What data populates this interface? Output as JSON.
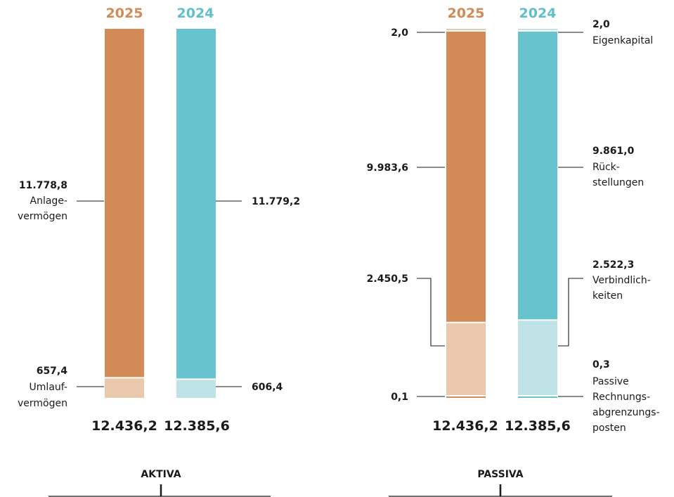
{
  "colors": {
    "y2025_dark": "#d28b57",
    "y2025_light": "#eac8ab",
    "y2024_dark": "#67c3cd",
    "y2024_light": "#bfe2e6",
    "y2025_text": "#d28b57",
    "y2024_text": "#5fc0cb"
  },
  "chart_data": [
    {
      "type": "bar",
      "stacked": true,
      "title": "AKTIVA",
      "categories": [
        "2025",
        "2024"
      ],
      "series": [
        {
          "name": "Umlaufvermögen",
          "values": [
            657.4,
            606.4
          ]
        },
        {
          "name": "Anlagevermögen",
          "values": [
            11778.8,
            11779.2
          ]
        }
      ],
      "totals": [
        "12.436,2",
        "12.385,6"
      ],
      "value_labels": {
        "Anlagevermögen": [
          "11.778,8",
          "11.779,2"
        ],
        "Umlaufvermögen": [
          "657,4",
          "606,4"
        ]
      },
      "segment_labels": {
        "Anlagevermögen": [
          "Anlage-",
          "vermögen"
        ],
        "Umlaufvermögen": [
          "Umlauf-",
          "vermögen"
        ]
      }
    },
    {
      "type": "bar",
      "stacked": true,
      "title": "PASSIVA",
      "categories": [
        "2025",
        "2024"
      ],
      "series": [
        {
          "name": "Passive Rechnungsabgrenzungsposten",
          "values": [
            0.1,
            0.3
          ]
        },
        {
          "name": "Verbindlichkeiten",
          "values": [
            2450.5,
            2522.3
          ]
        },
        {
          "name": "Rückstellungen",
          "values": [
            9983.6,
            9861.0
          ]
        },
        {
          "name": "Eigenkapital",
          "values": [
            2.0,
            2.0
          ]
        }
      ],
      "totals": [
        "12.436,2",
        "12.385,6"
      ],
      "value_labels": {
        "Eigenkapital": [
          "2,0",
          "2,0"
        ],
        "Rückstellungen": [
          "9.983,6",
          "9.861,0"
        ],
        "Verbindlichkeiten": [
          "2.450,5",
          "2.522,3"
        ],
        "Passive Rechnungsabgrenzungsposten": [
          "0,1",
          "0,3"
        ]
      },
      "segment_labels": {
        "Eigenkapital": [
          "Eigenkapital"
        ],
        "Rückstellungen": [
          "Rück-",
          "stellungen"
        ],
        "Verbindlichkeiten": [
          "Verbindlich-",
          "keiten"
        ],
        "Passive Rechnungsabgrenzungsposten": [
          "Passive",
          "Rechnungs-",
          "abgrenzungs-",
          "posten"
        ]
      }
    }
  ]
}
